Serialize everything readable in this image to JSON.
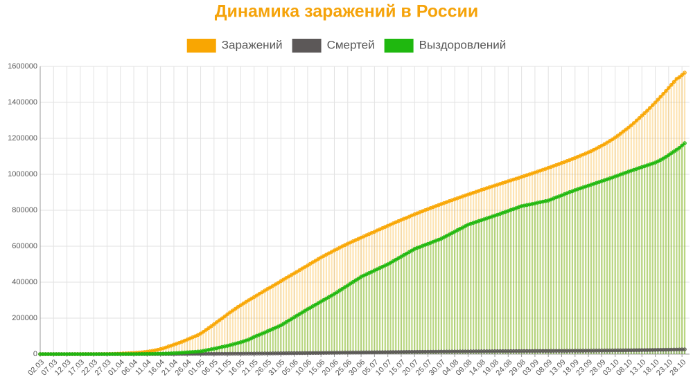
{
  "chart_data": {
    "type": "line",
    "title": "Динамика заражений в России",
    "legend": "top",
    "grid": true,
    "drop_lines": true,
    "ylim": [
      0,
      1600000
    ],
    "yticks": [
      0,
      200000,
      400000,
      600000,
      800000,
      1000000,
      1200000,
      1400000,
      1600000
    ],
    "categories": [
      "02.03",
      null,
      null,
      null,
      null,
      "07.03",
      null,
      null,
      null,
      null,
      "12.03",
      null,
      null,
      null,
      null,
      "17.03",
      null,
      null,
      null,
      null,
      "22.03",
      null,
      null,
      null,
      null,
      "27.03",
      null,
      null,
      null,
      null,
      "01.04",
      null,
      null,
      null,
      null,
      "06.04",
      null,
      null,
      null,
      null,
      "11.04",
      null,
      null,
      null,
      null,
      "16.04",
      null,
      null,
      null,
      null,
      "21.04",
      null,
      null,
      null,
      null,
      "26.04",
      null,
      null,
      null,
      null,
      "01.05",
      null,
      null,
      null,
      null,
      "06.05",
      null,
      null,
      null,
      null,
      "11.05",
      null,
      null,
      null,
      null,
      "16.05",
      null,
      null,
      null,
      null,
      "21.05",
      null,
      null,
      null,
      null,
      "26.05",
      null,
      null,
      null,
      null,
      "31.05",
      null,
      null,
      null,
      null,
      "05.06",
      null,
      null,
      null,
      null,
      "10.06",
      null,
      null,
      null,
      null,
      "15.06",
      null,
      null,
      null,
      null,
      "20.06",
      null,
      null,
      null,
      null,
      "25.06",
      null,
      null,
      null,
      null,
      "30.06",
      null,
      null,
      null,
      null,
      "05.07",
      null,
      null,
      null,
      null,
      "10.07",
      null,
      null,
      null,
      null,
      "15.07",
      null,
      null,
      null,
      null,
      "20.07",
      null,
      null,
      null,
      null,
      "25.07",
      null,
      null,
      null,
      null,
      "30.07",
      null,
      null,
      null,
      null,
      "04.08",
      null,
      null,
      null,
      null,
      "09.08",
      null,
      null,
      null,
      null,
      "14.08",
      null,
      null,
      null,
      null,
      "19.08",
      null,
      null,
      null,
      null,
      "24.08",
      null,
      null,
      null,
      null,
      "29.08",
      null,
      null,
      null,
      null,
      "03.09",
      null,
      null,
      null,
      null,
      "08.09",
      null,
      null,
      null,
      null,
      "13.09",
      null,
      null,
      null,
      null,
      "18.09",
      null,
      null,
      null,
      null,
      "23.09",
      null,
      null,
      null,
      null,
      "28.09",
      null,
      null,
      null,
      null,
      "03.10",
      null,
      null,
      null,
      null,
      "08.10",
      null,
      null,
      null,
      null,
      "13.10",
      null,
      null,
      null,
      null,
      "18.10",
      null,
      null,
      null,
      null,
      "23.10",
      null,
      null,
      null,
      null,
      "28.10",
      null
    ],
    "series": [
      {
        "name": "Заражений",
        "color": "#f9a602",
        "values": [
          3,
          3,
          3,
          4,
          10,
          10,
          13,
          17,
          17,
          20,
          28,
          34,
          45,
          59,
          63,
          90,
          114,
          147,
          199,
          253,
          306,
          367,
          438,
          495,
          658,
          840,
          1036,
          1264,
          1534,
          2337,
          2777,
          3548,
          4149,
          4731,
          5389,
          6343,
          7497,
          8672,
          10131,
          11917,
          13584,
          15770,
          18328,
          21102,
          24490,
          27938,
          32008,
          36793,
          42853,
          47121,
          52763,
          57999,
          62773,
          68622,
          74588,
          80949,
          87147,
          93558,
          99399,
          106498,
          114431,
          124054,
          134687,
          145268,
          155370,
          165929,
          177160,
          187859,
          198676,
          209688,
          221344,
          232243,
          242271,
          252245,
          262843,
          272043,
          281752,
          290678,
          299941,
          308705,
          317554,
          326448,
          335882,
          344481,
          353427,
          362342,
          370680,
          379051,
          387623,
          396575,
          405843,
          414878,
          423741,
          432277,
          440538,
          449256,
          458102,
          467073,
          476043,
          484630,
          493023,
          502436,
          511423,
          520129,
          528964,
          537210,
          545458,
          553301,
          561091,
          569063,
          576952,
          583879,
          592280,
          599705,
          606881,
          613994,
          620794,
          627646,
          634437,
          641156,
          647849,
          654405,
          661165,
          667883,
          674515,
          680283,
          687862,
          694230,
          700792,
          707301,
          713936,
          720547,
          727162,
          733699,
          739947,
          746369,
          752797,
          758001,
          764215,
          771546,
          777486,
          783328,
          789190,
          795038,
          800849,
          806720,
          812485,
          818120,
          823515,
          828990,
          834499,
          839981,
          845443,
          850870,
          856264,
          861423,
          866627,
          871894,
          877135,
          882347,
          887536,
          892654,
          897599,
          902701,
          907758,
          912823,
          917884,
          922853,
          927745,
          932493,
          937321,
          942106,
          946976,
          951897,
          956749,
          961493,
          966189,
          970865,
          975576,
          980405,
          985346,
          990326,
          995319,
          1000048,
          1005000,
          1009995,
          1015105,
          1020310,
          1025505,
          1030690,
          1035789,
          1041007,
          1046370,
          1051874,
          1057362,
          1062811,
          1068320,
          1073849,
          1079519,
          1085281,
          1091186,
          1097251,
          1103399,
          1109595,
          1115810,
          1122241,
          1128836,
          1136048,
          1143571,
          1151438,
          1159573,
          1167805,
          1176286,
          1185231,
          1194643,
          1204502,
          1214954,
          1225889,
          1237504,
          1248619,
          1260112,
          1272238,
          1285084,
          1298718,
          1312310,
          1326178,
          1340409,
          1354163,
          1369313,
          1384235,
          1399334,
          1415316,
          1431635,
          1447335,
          1463306,
          1480646,
          1497167,
          1513877,
          1531224,
          1540000,
          1552000,
          1565000
        ]
      },
      {
        "name": "Смертей",
        "color": "#5c5858",
        "values": [
          0,
          0,
          0,
          0,
          0,
          0,
          0,
          0,
          0,
          0,
          0,
          0,
          0,
          0,
          0,
          0,
          0,
          1,
          1,
          1,
          1,
          1,
          1,
          2,
          3,
          3,
          4,
          4,
          8,
          9,
          17,
          24,
          30,
          34,
          43,
          45,
          47,
          58,
          63,
          76,
          94,
          106,
          130,
          148,
          170,
          198,
          232,
          273,
          313,
          361,
          405,
          456,
          513,
          555,
          615,
          681,
          747,
          794,
          867,
          972,
          1073,
          1169,
          1222,
          1280,
          1356,
          1451,
          1537,
          1625,
          1723,
          1827,
          1915,
          2009,
          2116,
          2212,
          2305,
          2418,
          2537,
          2631,
          2722,
          2837,
          2972,
          3099,
          3249,
          3388,
          3541,
          3633,
          3807,
          3968,
          4142,
          4374,
          4555,
          4693,
          4855,
          5037,
          5215,
          5384,
          5520,
          5725,
          5859,
          5971,
          6142,
          6358,
          6532,
          6715,
          6829,
          6948,
          7091,
          7284,
          7478,
          7660,
          7843,
          8002,
          8111,
          8359,
          8513,
          8605,
          8781,
          8956,
          9073,
          9152,
          9268,
          9536,
          9683,
          9859,
          10027,
          10161,
          10296,
          10494,
          10667,
          10826,
          10989,
          11177,
          11335,
          11439,
          11614,
          11778,
          11937,
          12123,
          12247,
          12342,
          12427,
          12580,
          12745,
          12892,
          13026,
          13172,
          13269,
          13354,
          13483,
          13650,
          13802,
          13954,
          14058,
          14128,
          14207,
          14331,
          14465,
          14606,
          14725,
          14854,
          14931,
          15001,
          15131,
          15260,
          15384,
          15498,
          15585,
          15650,
          15722,
          15836,
          15951,
          16099,
          16189,
          16268,
          16310,
          16383,
          16448,
          16568,
          16683,
          16804,
          16914,
          16991,
          17045,
          17128,
          17250,
          17365,
          17479,
          17528,
          17649,
          17759,
          17820,
          17871,
          17993,
          18080,
          18135,
          18207,
          18263,
          18365,
          18484,
          18578,
          18635,
          18707,
          18785,
          18881,
          18917,
          19061,
          19195,
          19339,
          19489,
          19649,
          19799,
          19948,
          20056,
          20225,
          20385,
          20550,
          20722,
          20891,
          21077,
          21260,
          21475,
          21663,
          21865,
          22056,
          22257,
          22454,
          22597,
          22722,
          22966,
          23205,
          23491,
          23723,
          23998,
          24187,
          24366,
          24635,
          24952,
          25242,
          25525,
          25772,
          26050,
          26269
        ]
      },
      {
        "name": "Выздоровлений",
        "color": "#1fb80f",
        "values": [
          0,
          0,
          0,
          0,
          0,
          0,
          0,
          0,
          0,
          0,
          0,
          0,
          0,
          0,
          0,
          0,
          5,
          8,
          9,
          9,
          12,
          16,
          17,
          22,
          22,
          38,
          45,
          49,
          64,
          121,
          190,
          224,
          235,
          281,
          333,
          406,
          494,
          580,
          708,
          794,
          1045,
          1291,
          1470,
          1694,
          1986,
          2304,
          2590,
          3000,
          3500,
          4200,
          5000,
          6000,
          7000,
          8000,
          9000,
          10000,
          11000,
          12000,
          13000,
          14000,
          15000,
          18000,
          21000,
          24000,
          27000,
          30000,
          33000,
          36500,
          40000,
          43000,
          46000,
          50000,
          54000,
          58000,
          62000,
          66000,
          71000,
          76000,
          81000,
          88000,
          96000,
          102000,
          108000,
          114000,
          120000,
          127000,
          134000,
          140000,
          147000,
          153000,
          160000,
          169000,
          178000,
          187000,
          196000,
          205000,
          214000,
          223000,
          232000,
          241000,
          250000,
          258000,
          267000,
          275000,
          284000,
          292000,
          301000,
          309000,
          318000,
          326000,
          335000,
          344000,
          354000,
          363000,
          373000,
          382000,
          392000,
          401000,
          411000,
          420000,
          430000,
          437000,
          444000,
          451000,
          458000,
          465000,
          472000,
          479000,
          486000,
          493000,
          500000,
          508000,
          517000,
          525000,
          534000,
          542000,
          551000,
          559000,
          568000,
          576000,
          585000,
          591000,
          596000,
          602000,
          608000,
          613000,
          619000,
          625000,
          631000,
          636000,
          642000,
          650000,
          658000,
          665000,
          673000,
          681000,
          689000,
          697000,
          704000,
          712000,
          720000,
          725000,
          730000,
          735000,
          740000,
          745000,
          750000,
          755000,
          760000,
          765000,
          770000,
          775000,
          780000,
          786000,
          791000,
          796000,
          802000,
          807000,
          812000,
          818000,
          823000,
          826000,
          829000,
          832000,
          835000,
          838000,
          842000,
          845000,
          848000,
          851000,
          854000,
          860000,
          866000,
          872000,
          877000,
          883000,
          889000,
          895000,
          901000,
          906000,
          912000,
          917000,
          922000,
          927000,
          932000,
          937000,
          942000,
          947000,
          952000,
          957000,
          962000,
          967000,
          972000,
          977000,
          982000,
          988000,
          993000,
          999000,
          1004000,
          1009000,
          1015000,
          1020000,
          1025000,
          1030000,
          1035000,
          1040000,
          1045000,
          1050000,
          1055000,
          1060000,
          1065000,
          1072000,
          1080000,
          1088000,
          1097000,
          1107000,
          1117000,
          1127000,
          1137000,
          1147000,
          1160000,
          1173000
        ]
      }
    ]
  }
}
